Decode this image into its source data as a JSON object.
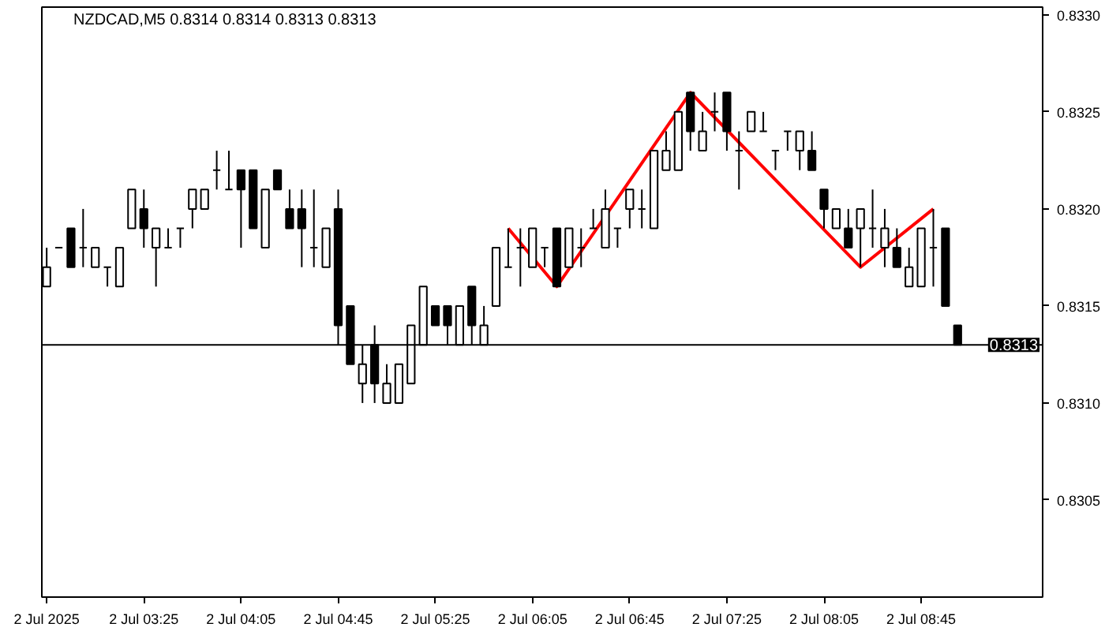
{
  "chart_data": {
    "type": "candlestick",
    "title": "NZDCAD,M5  0.8314 0.8314 0.8313 0.8313",
    "x": [
      "2025-07-02T02:45",
      "2025-07-02T02:50",
      "2025-07-02T02:55",
      "2025-07-02T03:00",
      "2025-07-02T03:05",
      "2025-07-02T03:10",
      "2025-07-02T03:15",
      "2025-07-02T03:20",
      "2025-07-02T03:25",
      "2025-07-02T03:30",
      "2025-07-02T03:35",
      "2025-07-02T03:40",
      "2025-07-02T03:45",
      "2025-07-02T03:50",
      "2025-07-02T03:55",
      "2025-07-02T04:00",
      "2025-07-02T04:05",
      "2025-07-02T04:10",
      "2025-07-02T04:15",
      "2025-07-02T04:20",
      "2025-07-02T04:25",
      "2025-07-02T04:30",
      "2025-07-02T04:35",
      "2025-07-02T04:40",
      "2025-07-02T04:45",
      "2025-07-02T04:50",
      "2025-07-02T04:55",
      "2025-07-02T05:00",
      "2025-07-02T05:05",
      "2025-07-02T05:10",
      "2025-07-02T05:15",
      "2025-07-02T05:20",
      "2025-07-02T05:25",
      "2025-07-02T05:30",
      "2025-07-02T05:35",
      "2025-07-02T05:40",
      "2025-07-02T05:45",
      "2025-07-02T05:50",
      "2025-07-02T05:55",
      "2025-07-02T06:00",
      "2025-07-02T06:05",
      "2025-07-02T06:10",
      "2025-07-02T06:15",
      "2025-07-02T06:20",
      "2025-07-02T06:25",
      "2025-07-02T06:30",
      "2025-07-02T06:35",
      "2025-07-02T06:40",
      "2025-07-02T06:45",
      "2025-07-02T06:50",
      "2025-07-02T06:55",
      "2025-07-02T07:00",
      "2025-07-02T07:05",
      "2025-07-02T07:10",
      "2025-07-02T07:15",
      "2025-07-02T07:20",
      "2025-07-02T07:25",
      "2025-07-02T07:30",
      "2025-07-02T07:35",
      "2025-07-02T07:40",
      "2025-07-02T07:45",
      "2025-07-02T07:50",
      "2025-07-02T07:55",
      "2025-07-02T08:00",
      "2025-07-02T08:05",
      "2025-07-02T08:10",
      "2025-07-02T08:15",
      "2025-07-02T08:20",
      "2025-07-02T08:25",
      "2025-07-02T08:30",
      "2025-07-02T08:35",
      "2025-07-02T08:40",
      "2025-07-02T08:45",
      "2025-07-02T08:50",
      "2025-07-02T08:55",
      "2025-07-02T09:00"
    ],
    "ohlc": [
      [
        0.8316,
        0.8318,
        0.8316,
        0.8317
      ],
      [
        0.8318,
        0.8318,
        0.8318,
        0.8318
      ],
      [
        0.8319,
        0.8319,
        0.8317,
        0.8317
      ],
      [
        0.8318,
        0.832,
        0.8317,
        0.8318
      ],
      [
        0.8317,
        0.8318,
        0.8317,
        0.8318
      ],
      [
        0.8317,
        0.8317,
        0.8316,
        0.8317
      ],
      [
        0.8316,
        0.8318,
        0.8316,
        0.8318
      ],
      [
        0.8319,
        0.8321,
        0.8319,
        0.8321
      ],
      [
        0.832,
        0.8321,
        0.8318,
        0.8319
      ],
      [
        0.8318,
        0.8319,
        0.8316,
        0.8319
      ],
      [
        0.8318,
        0.8319,
        0.8318,
        0.8318
      ],
      [
        0.8319,
        0.8319,
        0.8318,
        0.8319
      ],
      [
        0.832,
        0.8321,
        0.8319,
        0.8321
      ],
      [
        0.832,
        0.8321,
        0.832,
        0.8321
      ],
      [
        0.8322,
        0.8323,
        0.8321,
        0.8322
      ],
      [
        0.8321,
        0.8323,
        0.8321,
        0.8321
      ],
      [
        0.8322,
        0.8322,
        0.8318,
        0.8321
      ],
      [
        0.8322,
        0.8322,
        0.8319,
        0.8319
      ],
      [
        0.8318,
        0.8321,
        0.8318,
        0.8321
      ],
      [
        0.8322,
        0.8322,
        0.8321,
        0.8321
      ],
      [
        0.832,
        0.8321,
        0.8319,
        0.8319
      ],
      [
        0.832,
        0.8321,
        0.8317,
        0.8319
      ],
      [
        0.8318,
        0.8321,
        0.8317,
        0.8318
      ],
      [
        0.8317,
        0.8319,
        0.8317,
        0.8319
      ],
      [
        0.832,
        0.8321,
        0.8313,
        0.8314
      ],
      [
        0.8315,
        0.8315,
        0.8312,
        0.8312
      ],
      [
        0.8311,
        0.8313,
        0.831,
        0.8312
      ],
      [
        0.8313,
        0.8314,
        0.831,
        0.8311
      ],
      [
        0.831,
        0.8312,
        0.831,
        0.8311
      ],
      [
        0.831,
        0.8312,
        0.831,
        0.8312
      ],
      [
        0.8311,
        0.8314,
        0.8311,
        0.8314
      ],
      [
        0.8313,
        0.8316,
        0.8313,
        0.8316
      ],
      [
        0.8315,
        0.8315,
        0.8314,
        0.8314
      ],
      [
        0.8315,
        0.8315,
        0.8313,
        0.8314
      ],
      [
        0.8313,
        0.8315,
        0.8313,
        0.8315
      ],
      [
        0.8316,
        0.8316,
        0.8313,
        0.8314
      ],
      [
        0.8313,
        0.8315,
        0.8313,
        0.8314
      ],
      [
        0.8315,
        0.8318,
        0.8315,
        0.8318
      ],
      [
        0.8317,
        0.8319,
        0.8317,
        0.8317
      ],
      [
        0.8318,
        0.8319,
        0.8316,
        0.8318
      ],
      [
        0.8317,
        0.8319,
        0.8317,
        0.8319
      ],
      [
        0.8318,
        0.8318,
        0.8317,
        0.8318
      ],
      [
        0.8319,
        0.8319,
        0.8316,
        0.8316
      ],
      [
        0.8317,
        0.8319,
        0.8317,
        0.8319
      ],
      [
        0.8318,
        0.8319,
        0.8317,
        0.8318
      ],
      [
        0.8319,
        0.832,
        0.8319,
        0.8319
      ],
      [
        0.8318,
        0.8321,
        0.8318,
        0.832
      ],
      [
        0.8319,
        0.8319,
        0.8318,
        0.8319
      ],
      [
        0.832,
        0.8321,
        0.8319,
        0.8321
      ],
      [
        0.832,
        0.8321,
        0.8319,
        0.832
      ],
      [
        0.8319,
        0.8323,
        0.8319,
        0.8323
      ],
      [
        0.8322,
        0.8324,
        0.8322,
        0.8323
      ],
      [
        0.8322,
        0.8325,
        0.8322,
        0.8325
      ],
      [
        0.8326,
        0.8326,
        0.8323,
        0.8324
      ],
      [
        0.8323,
        0.8325,
        0.8323,
        0.8324
      ],
      [
        0.8325,
        0.8326,
        0.8324,
        0.8325
      ],
      [
        0.8326,
        0.8326,
        0.8323,
        0.8324
      ],
      [
        0.8323,
        0.8324,
        0.8321,
        0.8323
      ],
      [
        0.8324,
        0.8325,
        0.8324,
        0.8325
      ],
      [
        0.8324,
        0.8325,
        0.8324,
        0.8324
      ],
      [
        0.8323,
        0.8323,
        0.8322,
        0.8323
      ],
      [
        0.8324,
        0.8324,
        0.8323,
        0.8324
      ],
      [
        0.8323,
        0.8324,
        0.8322,
        0.8324
      ],
      [
        0.8323,
        0.8324,
        0.8322,
        0.8322
      ],
      [
        0.8321,
        0.8321,
        0.8319,
        0.832
      ],
      [
        0.8319,
        0.832,
        0.8319,
        0.832
      ],
      [
        0.8319,
        0.832,
        0.8318,
        0.8318
      ],
      [
        0.8319,
        0.832,
        0.8317,
        0.832
      ],
      [
        0.8319,
        0.8321,
        0.8318,
        0.8319
      ],
      [
        0.8318,
        0.832,
        0.8317,
        0.8319
      ],
      [
        0.8318,
        0.8319,
        0.8317,
        0.8317
      ],
      [
        0.8316,
        0.8318,
        0.8316,
        0.8317
      ],
      [
        0.8316,
        0.8319,
        0.8316,
        0.8319
      ],
      [
        0.8318,
        0.832,
        0.8316,
        0.8318
      ],
      [
        0.8319,
        0.8319,
        0.8315,
        0.8315
      ],
      [
        0.8314,
        0.8314,
        0.8313,
        0.8313
      ]
    ],
    "series": [
      {
        "type": "line",
        "color": "#ff0000",
        "x": [
          "2025-07-02T05:55",
          "2025-07-02T06:15",
          "2025-07-02T07:10",
          "2025-07-02T08:20",
          "2025-07-02T08:50"
        ],
        "values": [
          0.8319,
          0.8316,
          0.8326,
          0.8317,
          0.832
        ]
      }
    ],
    "ref_lines": [
      {
        "axis": "y",
        "value": 0.8313,
        "label": "0.8313",
        "color": "#000000"
      }
    ],
    "xlim": [
      "2025-07-02T02:43",
      "2025-07-02T09:35"
    ],
    "ylim": [
      0.83,
      0.83304
    ],
    "xticks": [
      {
        "value": "2025-07-02T02:45",
        "label": "2 Jul 2025"
      },
      {
        "value": "2025-07-02T03:25",
        "label": "2 Jul 03:25"
      },
      {
        "value": "2025-07-02T04:05",
        "label": "2 Jul 04:05"
      },
      {
        "value": "2025-07-02T04:45",
        "label": "2 Jul 04:45"
      },
      {
        "value": "2025-07-02T05:25",
        "label": "2 Jul 05:25"
      },
      {
        "value": "2025-07-02T06:05",
        "label": "2 Jul 06:05"
      },
      {
        "value": "2025-07-02T06:45",
        "label": "2 Jul 06:45"
      },
      {
        "value": "2025-07-02T07:25",
        "label": "2 Jul 07:25"
      },
      {
        "value": "2025-07-02T08:05",
        "label": "2 Jul 08:05"
      },
      {
        "value": "2025-07-02T08:45",
        "label": "2 Jul 08:45"
      }
    ],
    "yticks": [
      {
        "value": 0.8305,
        "label": "0.8305"
      },
      {
        "value": 0.831,
        "label": "0.8310"
      },
      {
        "value": 0.8315,
        "label": "0.8315"
      },
      {
        "value": 0.832,
        "label": "0.8320"
      },
      {
        "value": 0.8325,
        "label": "0.8325"
      },
      {
        "value": 0.833,
        "label": "0.8330"
      }
    ],
    "grid": false
  }
}
